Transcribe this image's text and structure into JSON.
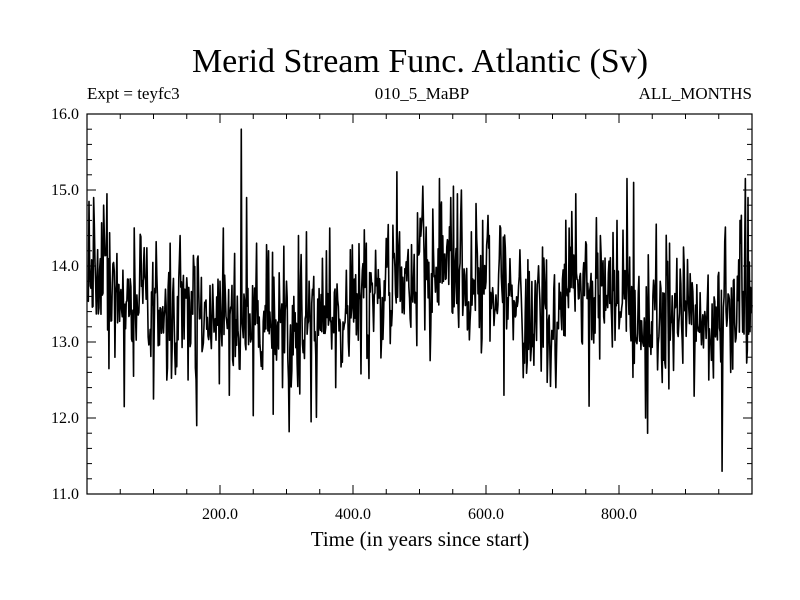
{
  "chart_data": {
    "type": "line",
    "title": "Merid Stream Func. Atlantic (Sv)",
    "subtitle_left": "Expt = teyfc3",
    "subtitle_center": "010_5_MaBP",
    "subtitle_right": "ALL_MONTHS",
    "xlabel": "Time (in years since start)",
    "ylabel": "",
    "xlim": [
      0,
      1000
    ],
    "ylim": [
      11.0,
      16.0
    ],
    "xticks": [
      200,
      400,
      600,
      800
    ],
    "xtick_labels": [
      "200.0",
      "400.0",
      "600.0",
      "800.0"
    ],
    "yticks": [
      11,
      12,
      13,
      14,
      15,
      16
    ],
    "ytick_labels": [
      "11.0",
      "12.0",
      "13.0",
      "14.0",
      "15.0",
      "16.0"
    ],
    "series": [
      {
        "name": "Merid Stream Func. Atlantic",
        "color": "#000000",
        "n_points": 1000,
        "x_start": 1,
        "x_step": 1,
        "baseline": [
          [
            0,
            13.85
          ],
          [
            50,
            13.6
          ],
          [
            100,
            13.45
          ],
          [
            150,
            13.3
          ],
          [
            200,
            13.35
          ],
          [
            250,
            13.45
          ],
          [
            300,
            12.95
          ],
          [
            350,
            13.4
          ],
          [
            400,
            13.45
          ],
          [
            450,
            13.7
          ],
          [
            500,
            13.95
          ],
          [
            550,
            13.75
          ],
          [
            600,
            13.6
          ],
          [
            650,
            13.45
          ],
          [
            700,
            13.4
          ],
          [
            750,
            13.5
          ],
          [
            800,
            13.4
          ],
          [
            850,
            13.15
          ],
          [
            900,
            13.25
          ],
          [
            950,
            13.4
          ],
          [
            1000,
            13.6
          ]
        ],
        "noise_sd": 0.42,
        "seed": 20240531,
        "extremes": [
          [
            3,
            14.85
          ],
          [
            10,
            14.9
          ],
          [
            25,
            14.8
          ],
          [
            30,
            14.95
          ],
          [
            33,
            12.65
          ],
          [
            42,
            12.8
          ],
          [
            56,
            12.15
          ],
          [
            70,
            12.55
          ],
          [
            100,
            12.25
          ],
          [
            125,
            14.3
          ],
          [
            140,
            14.4
          ],
          [
            152,
            12.5
          ],
          [
            165,
            11.9
          ],
          [
            205,
            14.5
          ],
          [
            214,
            12.3
          ],
          [
            232,
            15.8
          ],
          [
            240,
            14.9
          ],
          [
            255,
            14.3
          ],
          [
            273,
            14.2
          ],
          [
            280,
            12.05
          ],
          [
            294,
            12.4
          ],
          [
            304,
            11.82
          ],
          [
            318,
            14.4
          ],
          [
            330,
            14.45
          ],
          [
            337,
            11.95
          ],
          [
            360,
            14.2
          ],
          [
            365,
            14.5
          ],
          [
            374,
            12.4
          ],
          [
            420,
            14.3
          ],
          [
            470,
            14.45
          ],
          [
            497,
            14.7
          ],
          [
            505,
            15.05
          ],
          [
            520,
            14.75
          ],
          [
            530,
            15.15
          ],
          [
            547,
            14.9
          ],
          [
            551,
            15.05
          ],
          [
            557,
            14.95
          ],
          [
            563,
            15.0
          ],
          [
            578,
            14.45
          ],
          [
            595,
            14.6
          ],
          [
            605,
            14.4
          ],
          [
            622,
            14.5
          ],
          [
            627,
            12.3
          ],
          [
            685,
            14.25
          ],
          [
            705,
            12.4
          ],
          [
            725,
            14.5
          ],
          [
            735,
            14.95
          ],
          [
            772,
            14.4
          ],
          [
            797,
            14.6
          ],
          [
            812,
            15.15
          ],
          [
            822,
            15.1
          ],
          [
            840,
            12.0
          ],
          [
            843,
            11.8
          ],
          [
            856,
            14.55
          ],
          [
            876,
            14.3
          ],
          [
            887,
            14.1
          ],
          [
            897,
            14.25
          ],
          [
            935,
            12.5
          ],
          [
            955,
            11.3
          ],
          [
            968,
            12.6
          ],
          [
            975,
            13.0
          ],
          [
            982,
            14.6
          ],
          [
            990,
            15.15
          ],
          [
            994,
            14.9
          ]
        ]
      }
    ]
  }
}
